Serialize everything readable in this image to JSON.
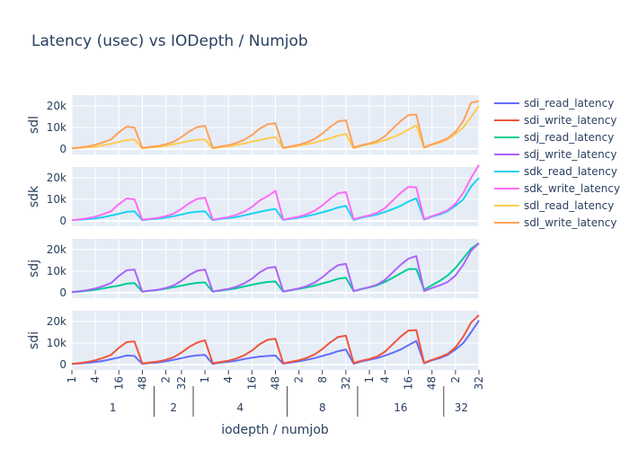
{
  "title": "Latency (usec) vs IODepth / Numjob",
  "colors": {
    "sdi_read_latency": "#636efa",
    "sdi_write_latency": "#EF553B",
    "sdj_read_latency": "#00cc96",
    "sdj_write_latency": "#ab63fa",
    "sdk_read_latency": "#19d3f3",
    "sdk_write_latency": "#ff6bf5",
    "sdl_read_latency": "#FECB52",
    "sdl_write_latency": "#FFA15A",
    "plot_bg": "#e5ecf6"
  },
  "chart_data": {
    "type": "line",
    "title": "Latency (usec) vs IODepth / Numjob",
    "xlabel": "iodepth / numjob",
    "x_tick_labels": [
      "1",
      "4",
      "16",
      "48",
      "2",
      "32",
      "1",
      "4",
      "16",
      "48",
      "2",
      "8",
      "32",
      "1",
      "4",
      "16",
      "48",
      "2",
      "32"
    ],
    "numjob_groups": [
      "1",
      "2",
      "4",
      "8",
      "16",
      "32"
    ],
    "y_tick_labels": [
      "0",
      "10k",
      "20k"
    ],
    "ylim": [
      -2500,
      25000
    ],
    "grid": true,
    "legend_position": "right",
    "legend": [
      "sdi_read_latency",
      "sdi_write_latency",
      "sdj_read_latency",
      "sdj_write_latency",
      "sdk_read_latency",
      "sdk_write_latency",
      "sdl_read_latency",
      "sdl_write_latency"
    ],
    "panels": [
      {
        "ylabel": "sdl",
        "series": [
          {
            "name": "sdl_read_latency",
            "values": [
              300,
              500,
              800,
              1200,
              1700,
              2500,
              3300,
              4200,
              4400,
              300,
              800,
              1000,
              1500,
              2200,
              3000,
              3800,
              4300,
              4400,
              300,
              900,
              1300,
              1800,
              2600,
              3400,
              4200,
              5000,
              5600,
              400,
              1000,
              1500,
              2200,
              3000,
              4000,
              5000,
              6200,
              7000,
              400,
              1500,
              2200,
              3000,
              4200,
              5500,
              7000,
              9000,
              11000,
              600,
              2000,
              3000,
              4500,
              7000,
              10000,
              15000,
              20000
            ]
          },
          {
            "name": "sdl_write_latency",
            "values": [
              300,
              700,
              1200,
              2000,
              3100,
              4500,
              7800,
              10400,
              10000,
              500,
              1000,
              1400,
              2200,
              3400,
              5600,
              8200,
              10200,
              10800,
              600,
              1200,
              1800,
              2800,
              4300,
              6500,
              9500,
              11500,
              12000,
              600,
              1300,
              2000,
              3100,
              4700,
              7200,
              10300,
              12800,
              13400,
              700,
              1800,
              2600,
              3800,
              6000,
              9500,
              13000,
              15800,
              16000,
              800,
              2200,
              3400,
              5000,
              8000,
              13000,
              21500,
              22300
            ]
          }
        ]
      },
      {
        "ylabel": "sdk",
        "series": [
          {
            "name": "sdk_read_latency",
            "values": [
              300,
              500,
              800,
              1200,
              1700,
              2500,
              3300,
              4200,
              4400,
              300,
              800,
              1000,
              1500,
              2200,
              3000,
              3800,
              4300,
              4400,
              300,
              900,
              1300,
              1800,
              2600,
              3400,
              4200,
              5000,
              5600,
              400,
              1000,
              1500,
              2200,
              3000,
              4000,
              5000,
              6200,
              7000,
              400,
              1500,
              2200,
              3000,
              4200,
              5500,
              7000,
              9000,
              10500,
              600,
              2000,
              3000,
              4500,
              7000,
              10000,
              16000,
              20000
            ]
          },
          {
            "name": "sdk_write_latency",
            "values": [
              300,
              700,
              1200,
              2000,
              3100,
              4500,
              7800,
              10400,
              10000,
              500,
              1000,
              1400,
              2200,
              3400,
              5600,
              8200,
              10200,
              10800,
              600,
              1200,
              1800,
              2800,
              4300,
              6500,
              9500,
              11500,
              14000,
              600,
              1300,
              2000,
              3100,
              4700,
              7200,
              10300,
              12800,
              13400,
              700,
              1800,
              2600,
              3800,
              6000,
              9500,
              13000,
              15800,
              15500,
              800,
              2200,
              3400,
              5000,
              8000,
              13000,
              20000,
              26000
            ]
          }
        ]
      },
      {
        "ylabel": "sdj",
        "series": [
          {
            "name": "sdj_read_latency",
            "values": [
              300,
              500,
              900,
              1400,
              2000,
              2700,
              3300,
              4200,
              4500,
              500,
              900,
              1300,
              1900,
              2600,
              3300,
              4000,
              4600,
              4800,
              500,
              1000,
              1500,
              2100,
              2900,
              3700,
              4400,
              5000,
              5200,
              500,
              1200,
              1800,
              2500,
              3300,
              4300,
              5300,
              6500,
              7000,
              800,
              1700,
              2500,
              3500,
              5000,
              7000,
              9000,
              11000,
              11000,
              1500,
              3500,
              5500,
              8000,
              11500,
              16000,
              20500,
              23000
            ]
          },
          {
            "name": "sdj_write_latency",
            "values": [
              300,
              700,
              1200,
              2000,
              3100,
              4500,
              7800,
              10400,
              10700,
              500,
              1000,
              1400,
              2200,
              3400,
              5600,
              8200,
              10200,
              10800,
              600,
              1200,
              1800,
              2800,
              4300,
              6500,
              9500,
              11500,
              12000,
              600,
              1300,
              2000,
              3100,
              4700,
              7200,
              10300,
              12800,
              13400,
              700,
              1800,
              2600,
              3800,
              6000,
              9500,
              13000,
              15800,
              17000,
              800,
              2200,
              3400,
              5000,
              8000,
              13000,
              19500,
              23000
            ]
          }
        ]
      },
      {
        "ylabel": "sdi",
        "series": [
          {
            "name": "sdi_read_latency",
            "values": [
              300,
              500,
              800,
              1200,
              1700,
              2500,
              3300,
              4200,
              4000,
              300,
              800,
              1000,
              1500,
              2200,
              3000,
              3800,
              4300,
              4500,
              300,
              900,
              1300,
              1800,
              2600,
              3200,
              3700,
              4000,
              4200,
              400,
              1000,
              1500,
              2200,
              3000,
              4000,
              5000,
              6200,
              7000,
              400,
              1500,
              2200,
              3000,
              4200,
              5500,
              7000,
              9000,
              11000,
              600,
              2000,
              3000,
              4500,
              7000,
              10000,
              15000,
              20500
            ]
          },
          {
            "name": "sdi_write_latency",
            "values": [
              300,
              700,
              1200,
              2000,
              3100,
              4500,
              7800,
              10400,
              10700,
              500,
              1000,
              1400,
              2200,
              3400,
              5600,
              8200,
              10200,
              11300,
              600,
              1200,
              1800,
              2800,
              4300,
              6500,
              9500,
              11500,
              12000,
              600,
              1300,
              2000,
              3100,
              4700,
              7200,
              10300,
              12800,
              13400,
              700,
              1800,
              2600,
              3800,
              6000,
              9500,
              13000,
              15800,
              16000,
              800,
              2200,
              3400,
              5000,
              8000,
              13000,
              19500,
              23000
            ]
          }
        ]
      }
    ]
  }
}
